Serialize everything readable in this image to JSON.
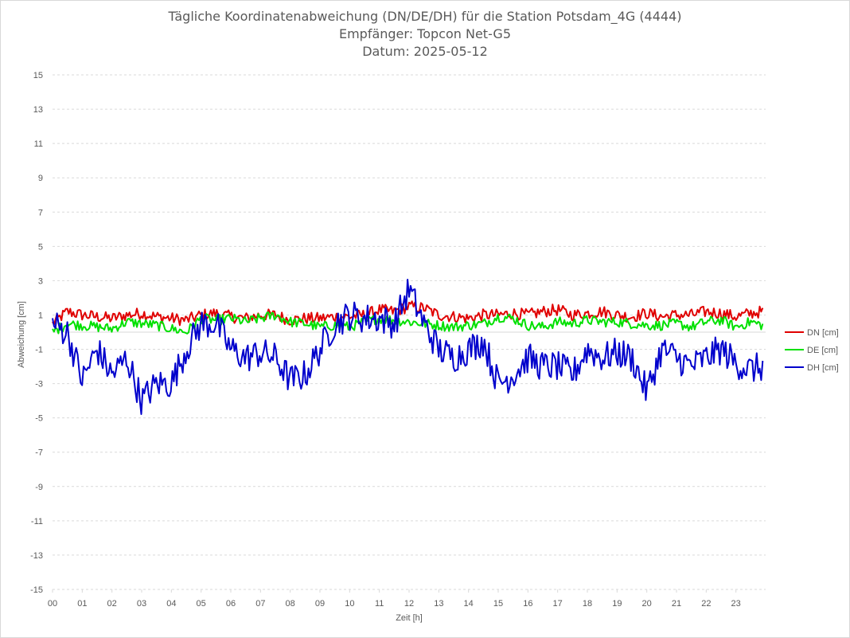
{
  "titles": {
    "line1": "Tägliche Koordinatenabweichung (DN/DE/DH) für die Station Potsdam_4G (4444)",
    "line2": "Empfänger: Topcon Net-G5",
    "line3": "Datum: 2025-05-12"
  },
  "chart_data": {
    "type": "line",
    "title": "Tägliche Koordinatenabweichung (DN/DE/DH) für die Station Potsdam_4G (4444)",
    "subtitle": [
      "Empfänger: Topcon Net-G5",
      "Datum: 2025-05-12"
    ],
    "xlabel": "Zeit [h]",
    "ylabel": "Abweichung [cm]",
    "ylim": [
      -15,
      15
    ],
    "xlim": [
      0,
      24
    ],
    "yticks": [
      "15",
      "13",
      "11",
      "9",
      "7",
      "5",
      "3",
      "1",
      "-1",
      "-3",
      "-5",
      "-7",
      "-9",
      "-11",
      "-13",
      "-15"
    ],
    "xticks": [
      "00",
      "01",
      "02",
      "03",
      "04",
      "05",
      "06",
      "07",
      "08",
      "09",
      "10",
      "11",
      "12",
      "13",
      "14",
      "15",
      "16",
      "17",
      "18",
      "19",
      "20",
      "21",
      "22",
      "23"
    ],
    "grid": true,
    "legend_position": "right",
    "x": [
      0,
      0.5,
      1,
      1.5,
      2,
      2.5,
      3,
      3.5,
      4,
      4.5,
      5,
      5.5,
      6,
      6.5,
      7,
      7.5,
      8,
      8.5,
      9,
      9.5,
      10,
      10.5,
      11,
      11.5,
      12,
      12.5,
      13,
      13.5,
      14,
      14.5,
      15,
      15.5,
      16,
      16.5,
      17,
      17.5,
      18,
      18.5,
      19,
      19.5,
      20,
      20.5,
      21,
      21.5,
      22,
      22.5,
      23,
      23.5,
      23.9
    ],
    "series": [
      {
        "name": "DN [cm]",
        "color": "#e00000",
        "values": [
          0.5,
          1.2,
          1.0,
          0.9,
          0.8,
          1.0,
          1.1,
          0.9,
          0.8,
          0.7,
          1.0,
          1.1,
          0.9,
          0.8,
          1.0,
          1.0,
          0.7,
          0.8,
          0.8,
          0.9,
          0.9,
          1.0,
          1.3,
          1.2,
          1.5,
          1.4,
          1.0,
          0.9,
          0.8,
          1.0,
          1.0,
          1.1,
          1.0,
          1.2,
          1.3,
          1.0,
          1.1,
          1.2,
          1.0,
          0.9,
          1.1,
          0.9,
          1.0,
          1.0,
          1.2,
          1.1,
          0.9,
          1.1,
          1.2
        ]
      },
      {
        "name": "DE [cm]",
        "color": "#00e000",
        "values": [
          0.0,
          0.5,
          0.4,
          0.3,
          0.2,
          0.6,
          0.5,
          0.4,
          0.2,
          0.0,
          0.8,
          0.7,
          0.8,
          0.6,
          0.8,
          1.0,
          0.6,
          0.5,
          0.3,
          0.4,
          0.3,
          0.6,
          0.8,
          0.7,
          0.6,
          0.5,
          0.4,
          0.3,
          0.4,
          0.5,
          0.9,
          0.8,
          0.4,
          0.3,
          0.6,
          0.5,
          0.7,
          0.6,
          0.6,
          0.5,
          0.4,
          0.4,
          0.5,
          0.3,
          0.6,
          0.7,
          0.3,
          0.6,
          0.4
        ]
      },
      {
        "name": "DH [cm]",
        "color": "#0000cc",
        "values": [
          0.5,
          0.0,
          -2.8,
          -1.0,
          -2.5,
          -1.5,
          -4.0,
          -3.0,
          -3.0,
          -1.0,
          0.5,
          0.5,
          -1.0,
          -1.5,
          -1.2,
          -1.5,
          -2.8,
          -2.5,
          -1.0,
          0.5,
          1.0,
          0.8,
          0.8,
          0.5,
          2.5,
          0.5,
          -1.0,
          -1.5,
          -1.0,
          -0.5,
          -3.0,
          -2.5,
          -1.5,
          -2.0,
          -2.0,
          -2.5,
          -1.0,
          -1.5,
          -1.2,
          -1.5,
          -3.5,
          -1.0,
          -1.5,
          -2.0,
          -1.5,
          -1.0,
          -1.8,
          -2.2,
          -2.0
        ]
      }
    ]
  },
  "colors": {
    "grid": "#d9d9d9",
    "zero_line": "#d9d9d9",
    "text": "#595959"
  }
}
